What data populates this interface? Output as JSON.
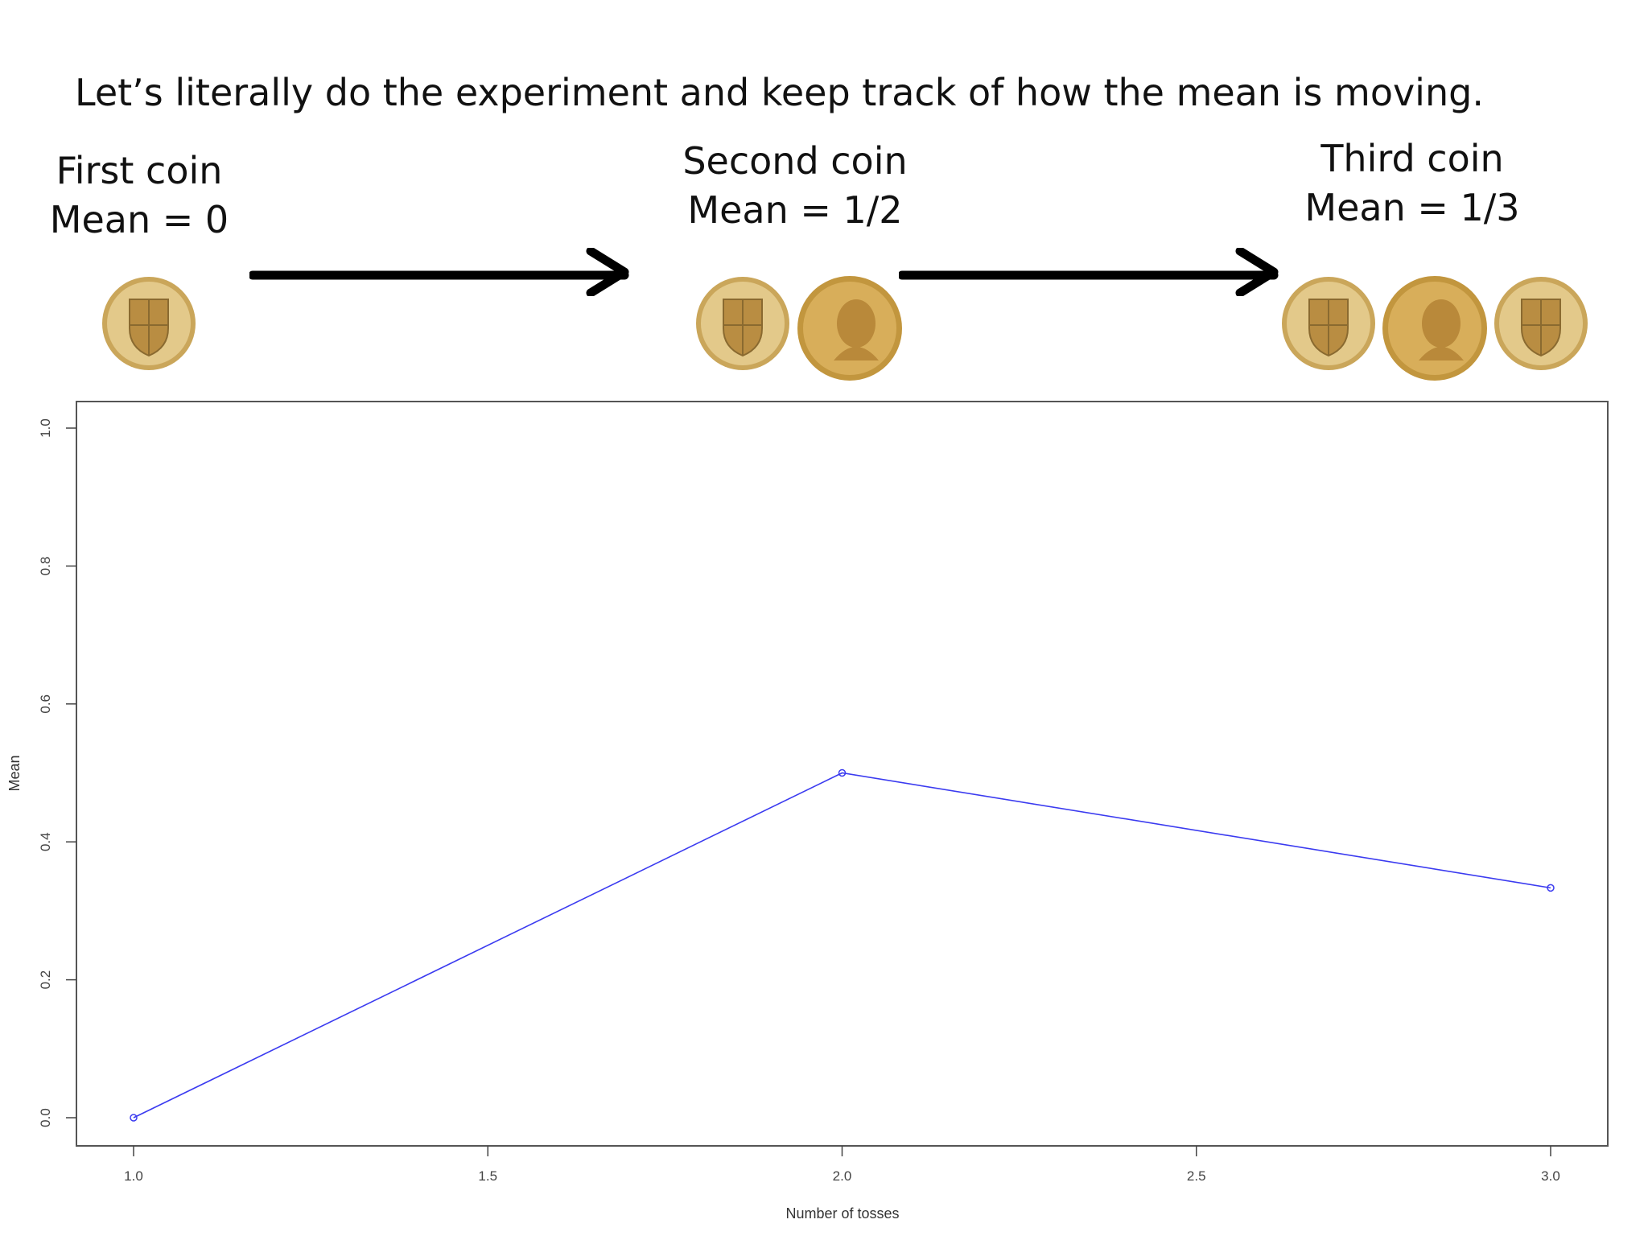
{
  "headline": "Let’s literally do the experiment and keep track of how the mean is moving.",
  "steps": [
    {
      "title": "First coin",
      "mean_label": "Mean = 0",
      "coins": [
        "shield",
        "-"
      ]
    },
    {
      "title": "Second coin",
      "mean_label": "Mean = 1/2",
      "coins": [
        "shield",
        "head"
      ]
    },
    {
      "title": "Third coin",
      "mean_label": "Mean = 1/3",
      "coins": [
        "shield",
        "head",
        "shield"
      ]
    }
  ],
  "colors": {
    "series": "#3b3bf0",
    "coin_gold": "#d9b468",
    "coin_rim": "#c49a4a",
    "axis": "#444444",
    "arrow": "#000000"
  },
  "chart_data": {
    "type": "line",
    "title": "",
    "xlabel": "Number of tosses",
    "ylabel": "Mean",
    "x": [
      1.0,
      2.0,
      3.0
    ],
    "series": [
      {
        "values": [
          0.0,
          0.5,
          0.3333
        ]
      }
    ],
    "xlim": [
      1.0,
      3.0
    ],
    "ylim": [
      0.0,
      1.0
    ],
    "xticks": [
      "1.0",
      "1.5",
      "2.0",
      "2.5",
      "3.0"
    ],
    "yticks": [
      "0.0",
      "0.2",
      "0.4",
      "0.6",
      "0.8",
      "1.0"
    ],
    "grid": false,
    "legend": "none"
  }
}
